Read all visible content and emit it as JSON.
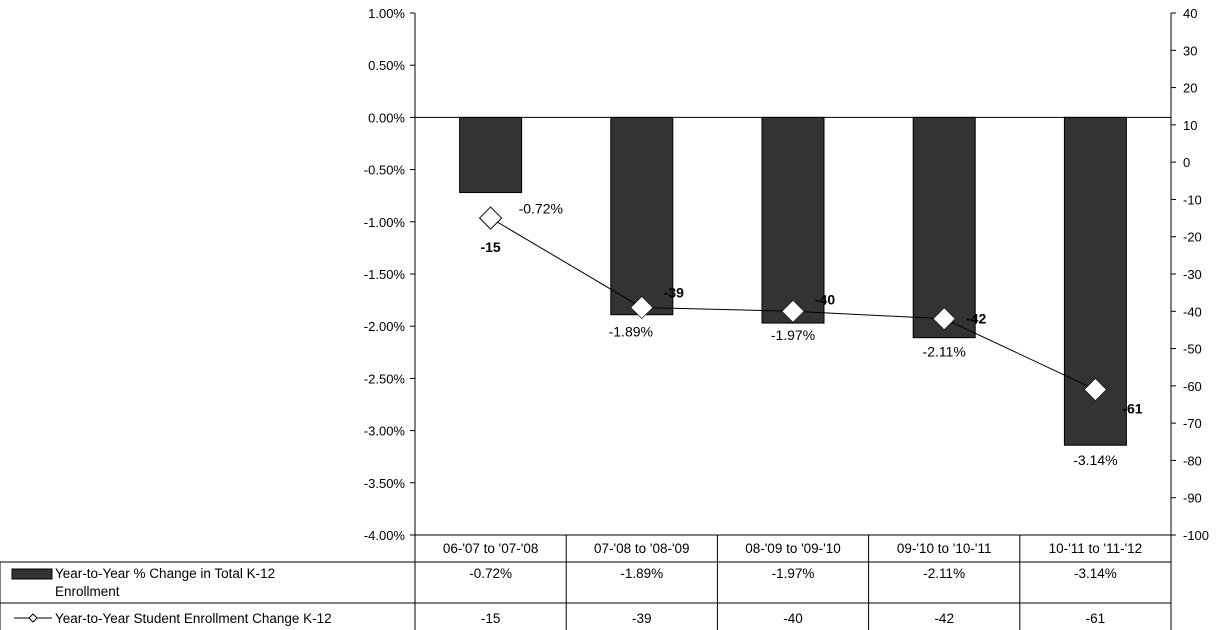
{
  "chart_data": {
    "type": "bar",
    "title": "",
    "categories": [
      "06-'07 to '07-'08",
      "07-'08 to '08-'09",
      "08-'09 to '09-'10",
      "09-'10 to '10-'11",
      "10-'11 to '11-'12"
    ],
    "series": [
      {
        "name": "Year-to-Year % Change in Total K-12 Enrollment",
        "type": "bar",
        "axis": "left",
        "color": "#333333",
        "values": [
          -0.72,
          -1.89,
          -1.97,
          -2.11,
          -3.14
        ],
        "labels": [
          "-0.72%",
          "-1.89%",
          "-1.97%",
          "-2.11%",
          "-3.14%"
        ]
      },
      {
        "name": "Year-to-Year Student Enrollment Change K-12",
        "type": "line",
        "axis": "right",
        "color": "#000000",
        "marker": "diamond",
        "values": [
          -15,
          -39,
          -40,
          -42,
          -61
        ],
        "labels": [
          "-15",
          "-39",
          "-40",
          "-42",
          "-61"
        ]
      }
    ],
    "y_left": {
      "ylim": [
        -4.0,
        1.0
      ],
      "ticks": [
        1.0,
        0.5,
        0.0,
        -0.5,
        -1.0,
        -1.5,
        -2.0,
        -2.5,
        -3.0,
        -3.5,
        -4.0
      ],
      "tick_labels": [
        "1.00%",
        "0.50%",
        "0.00%",
        "-0.50%",
        "-1.00%",
        "-1.50%",
        "-2.00%",
        "-2.50%",
        "-3.00%",
        "-3.50%",
        "-4.00%"
      ]
    },
    "y_right": {
      "ylim": [
        -100,
        40
      ],
      "ticks": [
        40,
        30,
        20,
        10,
        0,
        -10,
        -20,
        -30,
        -40,
        -50,
        -60,
        -70,
        -80,
        -90,
        -100
      ],
      "tick_labels": [
        "40",
        "30",
        "20",
        "10",
        "0",
        "-10",
        "-20",
        "-30",
        "-40",
        "-50",
        "-60",
        "-70",
        "-80",
        "-90",
        "-100"
      ]
    },
    "grid": false,
    "legend": "data-table-below",
    "data_table": {
      "rows": [
        {
          "legend_label_lines": [
            "Year-to-Year % Change in Total K-12",
            "Enrollment"
          ],
          "cells": [
            "-0.72%",
            "-1.89%",
            "-1.97%",
            "-2.11%",
            "-3.14%"
          ]
        },
        {
          "legend_label_lines": [
            "Year-to-Year Student Enrollment Change K-12"
          ],
          "cells": [
            "-15",
            "-39",
            "-40",
            "-42",
            "-61"
          ]
        }
      ]
    }
  }
}
